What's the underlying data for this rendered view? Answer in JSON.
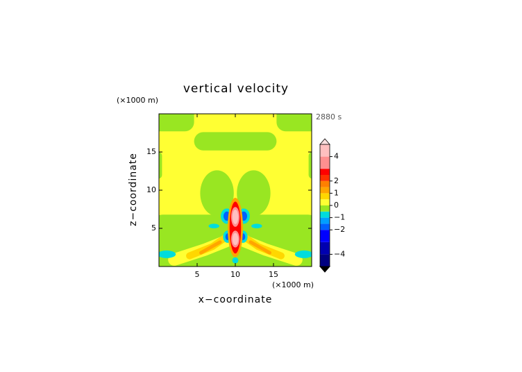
{
  "chart_data": {
    "type": "contour",
    "title": "vertical velocity",
    "time_label": "2880 s",
    "x_label": "x−coordinate",
    "y_label": "z−coordinate",
    "x_unit": "(×1000 m)",
    "y_unit": "(×1000 m)",
    "xlim": [
      0,
      20
    ],
    "ylim": [
      0,
      20
    ],
    "xticks": [
      5,
      10,
      15
    ],
    "yticks": [
      5,
      10,
      15
    ],
    "colorbar": {
      "bounds": [
        -5,
        -4,
        -3,
        -2,
        -1.5,
        -1,
        -0.5,
        0,
        0.5,
        1,
        1.5,
        2,
        2.5,
        3,
        4,
        5
      ],
      "colors": [
        "#000080",
        "#0000b0",
        "#0000ff",
        "#0060ff",
        "#00a0ff",
        "#00dcdc",
        "#99e622",
        "#ffff33",
        "#ffd700",
        "#ffa500",
        "#ff8000",
        "#ff3000",
        "#ff0000",
        "#ff9090",
        "#ffc0c0"
      ],
      "ticks": [
        4,
        2,
        1,
        0,
        {
          "value": -1,
          "label": "−1"
        },
        {
          "value": -2,
          "label": "−2"
        },
        {
          "value": -4,
          "label": "−4"
        }
      ]
    }
  }
}
